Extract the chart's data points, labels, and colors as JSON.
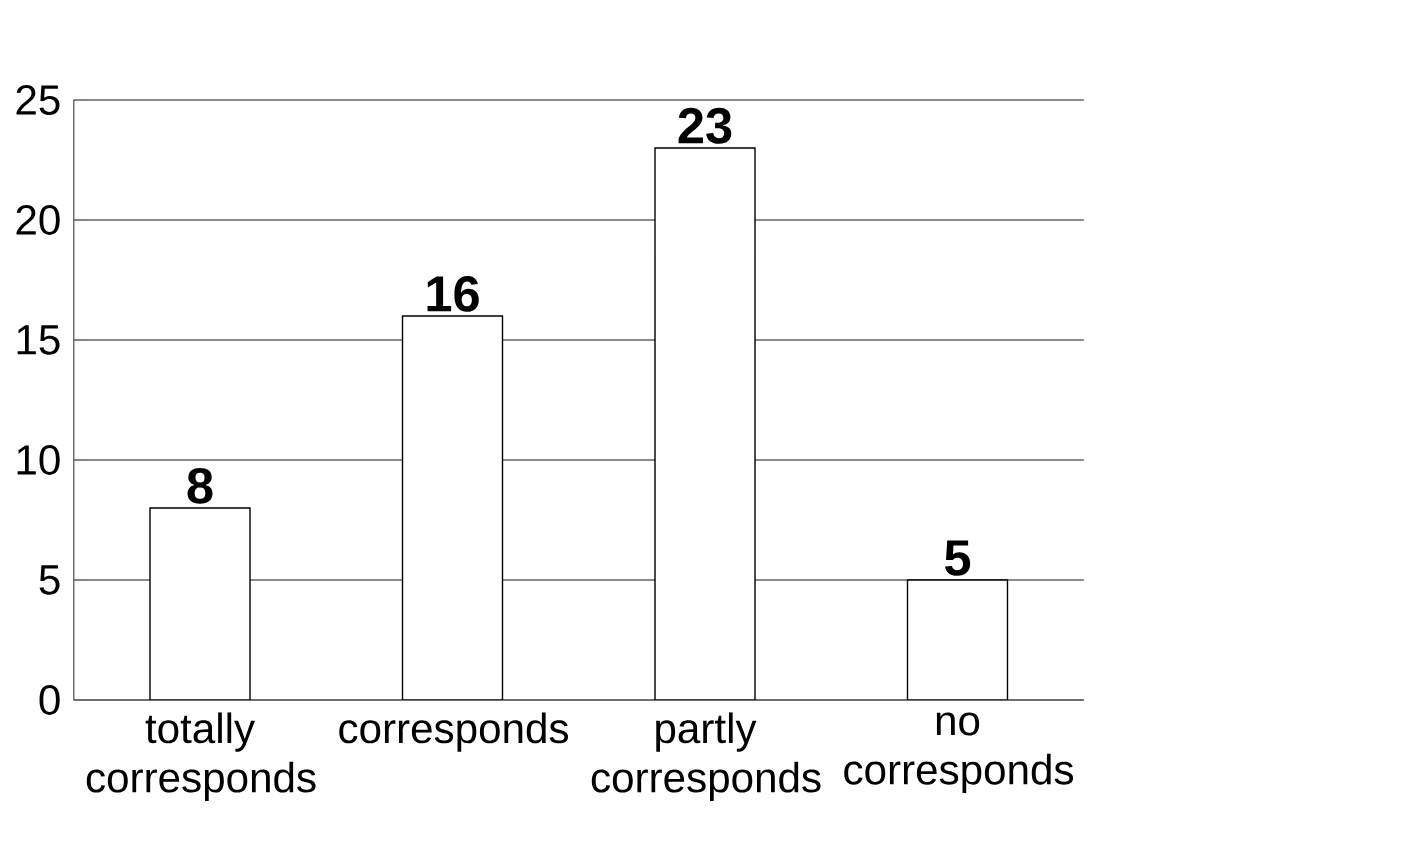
{
  "chart_data": {
    "type": "bar",
    "categories": [
      "totally corresponds",
      "corresponds",
      "partly corresponds",
      "no corresponds"
    ],
    "values": [
      8,
      16,
      23,
      5
    ],
    "color": "#ffffff",
    "ylim": [
      0,
      25
    ],
    "yticks": [
      0,
      5,
      10,
      15,
      20,
      25
    ],
    "grid": "y",
    "data_labels": true
  }
}
